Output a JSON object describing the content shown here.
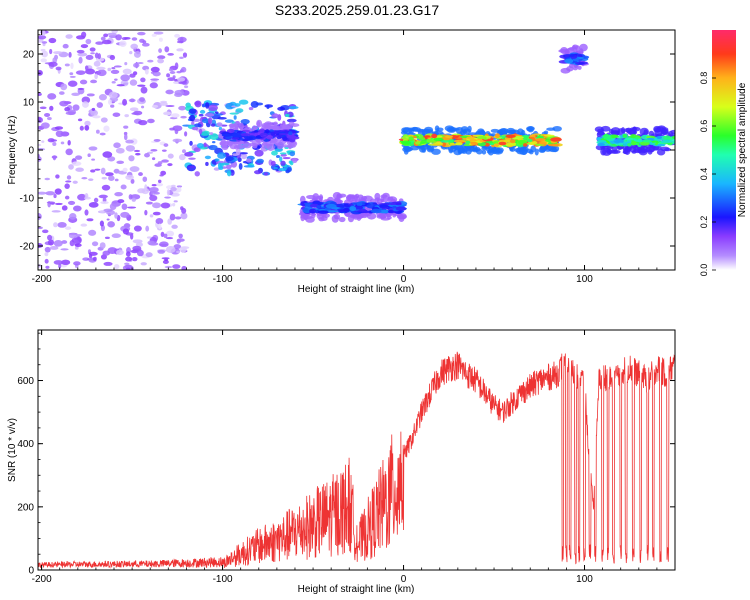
{
  "page": {
    "title": "S233.2025.259.01.23.G17"
  },
  "colors": {
    "snr_line": "#ee3333",
    "axis": "#000000",
    "colormap": [
      "#ffffff",
      "#8a5cff",
      "#1a16ff",
      "#1ab6ff",
      "#20ff80",
      "#2aff2a",
      "#d8ff1a",
      "#ffb21a",
      "#ff3a1a",
      "#ff2a6a"
    ]
  },
  "chart_data": [
    {
      "type": "heatmap",
      "title": "S233.2025.259.01.23.G17",
      "xlabel": "Height of straight line (km)",
      "ylabel": "Frequency (Hz)",
      "xlim": [
        -202,
        150
      ],
      "ylim": [
        -25,
        25
      ],
      "x_ticks": [
        -200,
        -100,
        0,
        100
      ],
      "y_ticks": [
        -20,
        -10,
        0,
        10,
        20
      ],
      "colorbar": {
        "label": "Normalized spectral amplitude",
        "range": [
          0,
          1
        ],
        "ticks": [
          0.0,
          0.2,
          0.4,
          0.6,
          0.8
        ]
      },
      "features": [
        {
          "x_range": [
            -202,
            -120
          ],
          "freq_range": [
            -25,
            25
          ],
          "amplitude": 0.05,
          "kind": "scatter-noise"
        },
        {
          "x_range": [
            -120,
            -60
          ],
          "freq_range": [
            -5,
            10
          ],
          "amplitude": 0.15,
          "kind": "noise-cluster"
        },
        {
          "x_range": [
            -100,
            -60
          ],
          "freq": 3,
          "amplitude": 0.25,
          "kind": "band"
        },
        {
          "x_range": [
            -56,
            0
          ],
          "freq": -12,
          "amplitude": 0.3,
          "kind": "band"
        },
        {
          "x_range": [
            0,
            85
          ],
          "freq": 2,
          "amplitude": 0.85,
          "kind": "band"
        },
        {
          "x_range": [
            88,
            100
          ],
          "freq": 19,
          "amplitude": 0.3,
          "kind": "band"
        },
        {
          "x_range": [
            108,
            150
          ],
          "freq": 2,
          "amplitude": 0.55,
          "kind": "band"
        }
      ]
    },
    {
      "type": "line",
      "xlabel": "Height of straight line (km)",
      "ylabel": "SNR (10 * v/v)",
      "xlim": [
        -202,
        150
      ],
      "ylim": [
        0,
        760
      ],
      "x_ticks": [
        -200,
        -100,
        0,
        100
      ],
      "y_ticks": [
        0,
        200,
        400,
        600
      ],
      "series": [
        {
          "x": [
            -200,
            -180,
            -160,
            -140,
            -120,
            -100,
            -90,
            -80,
            -70,
            -60,
            -50,
            -40,
            -30,
            -25,
            -20,
            -10,
            0,
            5,
            10,
            15,
            20,
            25,
            30,
            35,
            40,
            45,
            50,
            55,
            60,
            65,
            70,
            75,
            80,
            85,
            88,
            90,
            95,
            100,
            102,
            105,
            108,
            110,
            115,
            120,
            125,
            130,
            135,
            140,
            145,
            150
          ],
          "y": [
            12,
            14,
            15,
            16,
            20,
            25,
            60,
            90,
            110,
            140,
            170,
            200,
            240,
            100,
            150,
            250,
            360,
            420,
            500,
            560,
            620,
            640,
            650,
            620,
            600,
            560,
            520,
            500,
            530,
            560,
            580,
            600,
            610,
            620,
            650,
            640,
            620,
            600,
            400,
            200,
            600,
            620,
            600,
            630,
            640,
            620,
            600,
            640,
            620,
            650
          ]
        }
      ],
      "dropouts_x": [
        88,
        90,
        92,
        95,
        97,
        100,
        103,
        106,
        110,
        113,
        116,
        120,
        123,
        127,
        131,
        135,
        138,
        142,
        146
      ]
    }
  ]
}
